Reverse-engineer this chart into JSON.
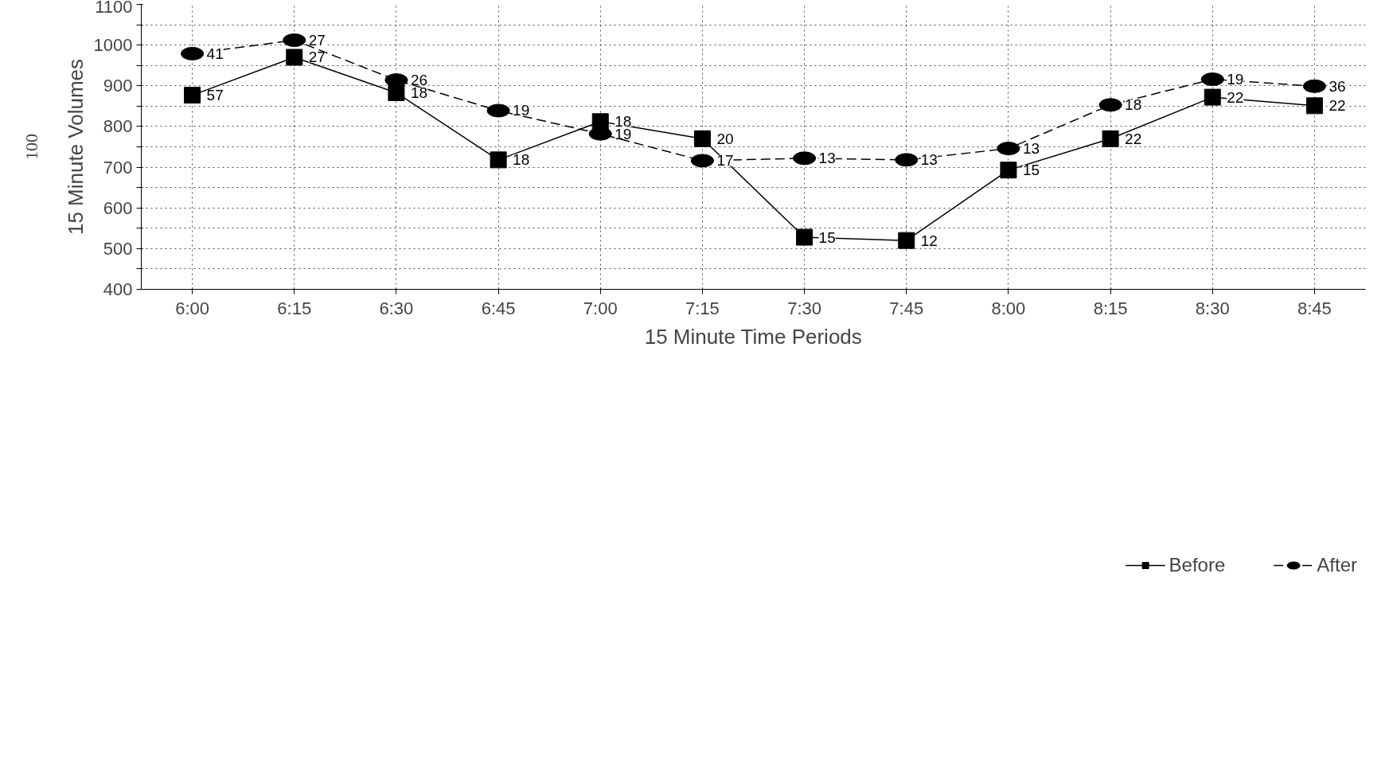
{
  "chart_data": {
    "type": "line",
    "xlabel": "15 Minute Time Periods",
    "ylabel": "15 Minute Volumes",
    "categories": [
      "6:00",
      "6:15",
      "6:30",
      "6:45",
      "7:00",
      "7:15",
      "7:30",
      "7:45",
      "8:00",
      "8:15",
      "8:30",
      "8:45"
    ],
    "series": [
      {
        "name": "Before",
        "color": "#000000",
        "marker": "square",
        "line_style": "solid",
        "values": [
          877,
          970,
          883,
          718,
          812,
          770,
          528,
          520,
          693,
          770,
          872,
          851
        ]
      },
      {
        "name": "After",
        "color": "#000000",
        "marker": "circle",
        "line_style": "dashed",
        "values": [
          979,
          1012,
          914,
          839,
          782,
          716,
          722,
          718,
          746,
          853,
          916,
          899
        ]
      }
    ],
    "annotations": [
      "100",
      {
        "text": "57",
        "x": "6:00",
        "y": 877
      },
      {
        "text": "27",
        "x": "6:15",
        "y": 970
      },
      {
        "text": "18",
        "x": "6:30",
        "y": 883
      },
      {
        "text": "18",
        "x": "6:45",
        "y": 718
      },
      {
        "text": "18",
        "x": "7:00",
        "y": 812
      },
      {
        "text": "20",
        "x": "7:15",
        "y": 770
      },
      {
        "text": "15",
        "x": "7:30",
        "y": 528
      },
      {
        "text": "12",
        "x": "7:45",
        "y": 520
      },
      {
        "text": "15",
        "x": "8:00",
        "y": 693
      },
      {
        "text": "22",
        "x": "8:15",
        "y": 770
      },
      {
        "text": "22",
        "x": "8:30",
        "y": 872
      },
      {
        "text": "22",
        "x": "8:45",
        "y": 851
      },
      {
        "text": "41",
        "x": "6:00",
        "y": 979
      },
      {
        "text": "27",
        "x": "6:15",
        "y": 1012
      },
      {
        "text": "26",
        "x": "6:30",
        "y": 914
      },
      {
        "text": "19",
        "x": "6:45",
        "y": 839
      },
      {
        "text": "19",
        "x": "7:00",
        "y": 782
      },
      {
        "text": "17",
        "x": "7:15",
        "y": 716
      },
      {
        "text": "13",
        "x": "7:30",
        "y": 722
      },
      {
        "text": "13",
        "x": "7:45",
        "y": 718
      },
      {
        "text": "13",
        "x": "8:00",
        "y": 746
      },
      {
        "text": "18",
        "x": "8:15",
        "y": 853
      },
      {
        "text": "19",
        "x": "8:30",
        "y": 916
      },
      {
        "text": "36",
        "x": "8:45",
        "y": 899
      }
    ],
    "ylim": [
      400,
      1100
    ],
    "yticks": [
      400,
      {
        "value": 450,
        "label": null
      },
      500,
      {
        "value": 550,
        "label": null
      },
      600,
      {
        "value": 650,
        "label": null
      },
      700,
      {
        "value": 750,
        "label": null
      },
      800,
      {
        "value": 850,
        "label": null
      },
      900,
      {
        "value": 950,
        "label": null
      },
      1000,
      {
        "value": 1050,
        "label": null
      },
      1100
    ],
    "grid": true,
    "legend": "bottom"
  }
}
